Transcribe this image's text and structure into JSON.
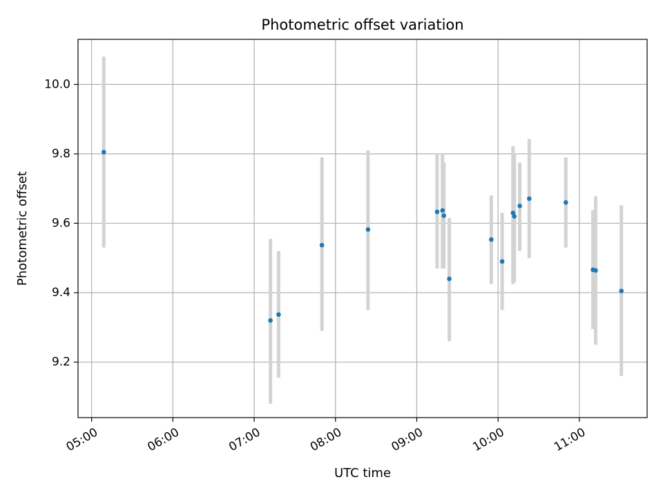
{
  "chart_data": {
    "type": "scatter",
    "title": "Photometric offset variation",
    "xlabel": "UTC time",
    "ylabel": "Photometric offset",
    "x_tick_labels": [
      "05:00",
      "06:00",
      "07:00",
      "08:00",
      "09:00",
      "10:00",
      "11:00"
    ],
    "y_tick_labels": [
      "9.2",
      "9.4",
      "9.6",
      "9.8",
      "10.0"
    ],
    "x_tick_values": [
      "05:00",
      "06:00",
      "07:00",
      "08:00",
      "09:00",
      "10:00",
      "11:00"
    ],
    "y_tick_values": [
      9.2,
      9.4,
      9.6,
      9.8,
      10.0
    ],
    "xlim": [
      "04:50",
      "11:50"
    ],
    "ylim": [
      9.04,
      10.13
    ],
    "grid": true,
    "point_color": "#1f77b4",
    "errorbar_color": "#d3d3d3",
    "points": [
      {
        "x": "05:09",
        "y": 9.805,
        "ylow": 9.53,
        "yhigh": 10.08
      },
      {
        "x": "07:12",
        "y": 9.32,
        "ylow": 9.08,
        "yhigh": 9.555
      },
      {
        "x": "07:18",
        "y": 9.337,
        "ylow": 9.155,
        "yhigh": 9.52
      },
      {
        "x": "07:50",
        "y": 9.537,
        "ylow": 9.29,
        "yhigh": 9.79
      },
      {
        "x": "08:24",
        "y": 9.582,
        "ylow": 9.35,
        "yhigh": 9.81
      },
      {
        "x": "09:15",
        "y": 9.633,
        "ylow": 9.47,
        "yhigh": 9.8
      },
      {
        "x": "09:19",
        "y": 9.637,
        "ylow": 9.47,
        "yhigh": 9.8
      },
      {
        "x": "09:20",
        "y": 9.622,
        "ylow": 9.47,
        "yhigh": 9.775
      },
      {
        "x": "09:24",
        "y": 9.44,
        "ylow": 9.26,
        "yhigh": 9.615
      },
      {
        "x": "09:55",
        "y": 9.553,
        "ylow": 9.425,
        "yhigh": 9.68
      },
      {
        "x": "10:03",
        "y": 9.49,
        "ylow": 9.35,
        "yhigh": 9.63
      },
      {
        "x": "10:11",
        "y": 9.63,
        "ylow": 9.425,
        "yhigh": 9.822
      },
      {
        "x": "10:12",
        "y": 9.62,
        "ylow": 9.43,
        "yhigh": 9.8
      },
      {
        "x": "10:16",
        "y": 9.65,
        "ylow": 9.52,
        "yhigh": 9.775
      },
      {
        "x": "10:23",
        "y": 9.671,
        "ylow": 9.5,
        "yhigh": 9.843
      },
      {
        "x": "10:50",
        "y": 9.66,
        "ylow": 9.53,
        "yhigh": 9.79
      },
      {
        "x": "11:10",
        "y": 9.466,
        "ylow": 9.295,
        "yhigh": 9.638
      },
      {
        "x": "11:12",
        "y": 9.464,
        "ylow": 9.25,
        "yhigh": 9.678
      },
      {
        "x": "11:31",
        "y": 9.405,
        "ylow": 9.16,
        "yhigh": 9.652
      }
    ]
  }
}
